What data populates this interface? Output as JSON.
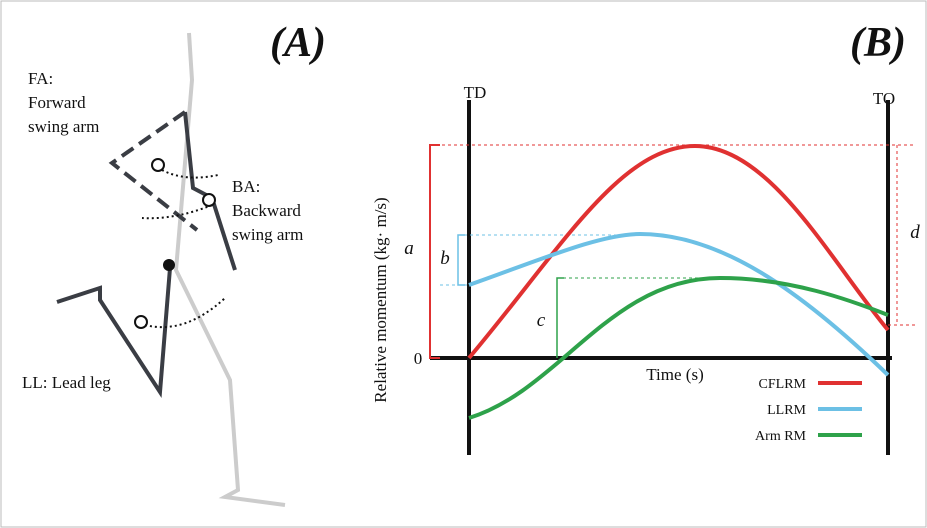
{
  "panel_a": {
    "label": "(A)",
    "annotations": [
      {
        "lines": [
          "FA:",
          "Forward",
          "swing arm"
        ]
      },
      {
        "lines": [
          "BA:",
          "Backward",
          "swing arm"
        ]
      },
      {
        "lines": [
          "LL: Lead leg"
        ]
      }
    ]
  },
  "panel_b": {
    "label": "(B)",
    "td_label": "TD",
    "to_label": "TO",
    "y_axis_label": "Relative momentum (kg· m/s)",
    "x_axis_label": "Time (s)",
    "zero_label": "0",
    "brackets": [
      "a",
      "b",
      "c",
      "d"
    ],
    "legend": [
      {
        "name": "CFLRM",
        "color": "#e03131"
      },
      {
        "name": "LLRM",
        "color": "#6cc0e5"
      },
      {
        "name": "Arm RM",
        "color": "#2ea24a"
      }
    ]
  }
}
